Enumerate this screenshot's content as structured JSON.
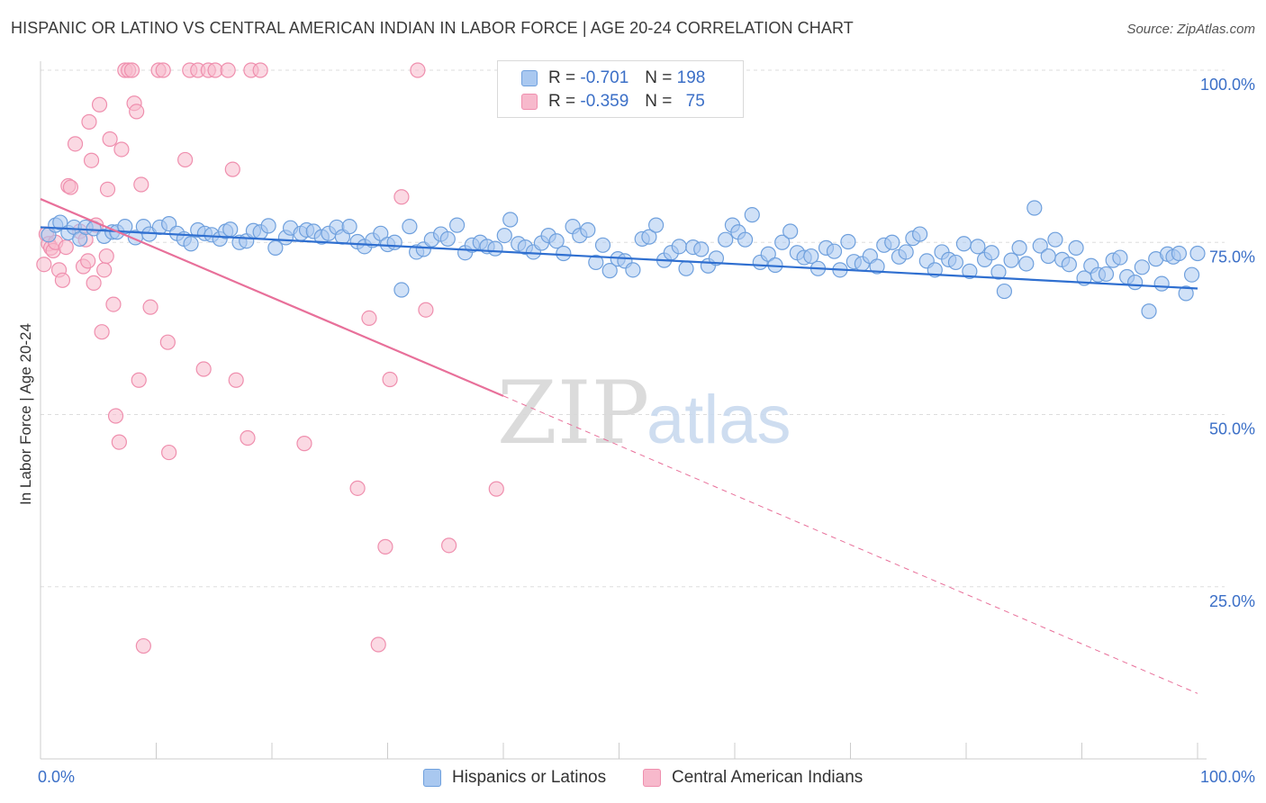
{
  "title": "HISPANIC OR LATINO VS CENTRAL AMERICAN INDIAN IN LABOR FORCE | AGE 20-24 CORRELATION CHART",
  "source": "Source: ZipAtlas.com",
  "watermark": {
    "zip": "ZIP",
    "atlas": "atlas"
  },
  "colors": {
    "blue_fill": "#a9c8f0",
    "blue_stroke": "#6fa0dd",
    "blue_line": "#2f6fd0",
    "pink_fill": "#f7b9cc",
    "pink_stroke": "#ef8fae",
    "pink_line": "#e8709a",
    "tick_label": "#3b6fc7",
    "grid": "#dddddd"
  },
  "legend": {
    "rows": [
      {
        "r_label": "R =",
        "r_value": "-0.701",
        "n_label": "N =",
        "n_value": "198"
      },
      {
        "r_label": "R =",
        "r_value": "-0.359",
        "n_label": "N =",
        "n_value": "75"
      }
    ]
  },
  "bottom_legend": [
    "Hispanics or Latinos",
    "Central American Indians"
  ],
  "chart_data": {
    "type": "scatter",
    "xlabel": "",
    "ylabel": "In Labor Force | Age 20-24",
    "xlim": [
      0,
      100
    ],
    "ylim": [
      0,
      100
    ],
    "x_tick_labels": [
      "0.0%",
      "100.0%"
    ],
    "y_tick_labels": [
      "100.0%",
      "75.0%",
      "50.0%",
      "25.0%"
    ],
    "y_ticks": [
      100,
      75,
      50,
      25
    ],
    "series": [
      {
        "name": "Hispanics or Latinos",
        "color": "blue",
        "trendline": {
          "x": [
            0,
            100
          ],
          "y": [
            77.2,
            68.3
          ],
          "style": "solid"
        },
        "points": [
          [
            0.7,
            76.1
          ],
          [
            1.3,
            77.5
          ],
          [
            1.7,
            77.9
          ],
          [
            2.4,
            76.4
          ],
          [
            2.9,
            77.2
          ],
          [
            3.4,
            75.5
          ],
          [
            3.9,
            77.2
          ],
          [
            4.6,
            77.0
          ],
          [
            5.5,
            75.9
          ],
          [
            6.2,
            76.5
          ],
          [
            6.6,
            76.5
          ],
          [
            7.3,
            77.3
          ],
          [
            8.2,
            75.7
          ],
          [
            8.9,
            77.3
          ],
          [
            9.4,
            76.2
          ],
          [
            10.3,
            77.2
          ],
          [
            11.1,
            77.7
          ],
          [
            11.8,
            76.3
          ],
          [
            12.4,
            75.5
          ],
          [
            13.0,
            74.8
          ],
          [
            13.6,
            76.8
          ],
          [
            14.2,
            76.3
          ],
          [
            14.8,
            76.1
          ],
          [
            15.5,
            75.5
          ],
          [
            16.0,
            76.6
          ],
          [
            16.4,
            76.9
          ],
          [
            17.2,
            75.0
          ],
          [
            17.8,
            75.2
          ],
          [
            18.4,
            76.7
          ],
          [
            19.0,
            76.5
          ],
          [
            19.7,
            77.4
          ],
          [
            20.3,
            74.2
          ],
          [
            21.2,
            75.7
          ],
          [
            21.6,
            77.1
          ],
          [
            22.5,
            76.3
          ],
          [
            23.0,
            76.8
          ],
          [
            23.6,
            76.6
          ],
          [
            24.3,
            75.8
          ],
          [
            24.9,
            76.3
          ],
          [
            25.6,
            77.2
          ],
          [
            26.1,
            75.8
          ],
          [
            26.7,
            77.3
          ],
          [
            27.4,
            75.1
          ],
          [
            28.0,
            74.4
          ],
          [
            28.7,
            75.3
          ],
          [
            29.4,
            76.3
          ],
          [
            30.0,
            74.7
          ],
          [
            30.6,
            75.0
          ],
          [
            31.2,
            68.1
          ],
          [
            31.9,
            77.3
          ],
          [
            32.5,
            73.6
          ],
          [
            33.1,
            74.0
          ],
          [
            33.8,
            75.4
          ],
          [
            34.6,
            76.2
          ],
          [
            35.2,
            75.5
          ],
          [
            36.0,
            77.5
          ],
          [
            36.7,
            73.5
          ],
          [
            37.3,
            74.6
          ],
          [
            38.0,
            75.0
          ],
          [
            38.6,
            74.4
          ],
          [
            39.3,
            74.1
          ],
          [
            40.1,
            76.0
          ],
          [
            40.6,
            78.3
          ],
          [
            41.3,
            74.8
          ],
          [
            41.9,
            74.3
          ],
          [
            42.6,
            73.6
          ],
          [
            43.3,
            74.9
          ],
          [
            43.9,
            76.0
          ],
          [
            44.6,
            75.2
          ],
          [
            45.2,
            73.4
          ],
          [
            46.0,
            77.3
          ],
          [
            46.6,
            76.0
          ],
          [
            47.3,
            76.8
          ],
          [
            48.0,
            72.1
          ],
          [
            48.6,
            74.6
          ],
          [
            49.2,
            70.9
          ],
          [
            49.9,
            72.6
          ],
          [
            50.5,
            72.3
          ],
          [
            51.2,
            71.0
          ],
          [
            52.0,
            75.5
          ],
          [
            52.6,
            75.8
          ],
          [
            53.2,
            77.5
          ],
          [
            53.9,
            72.4
          ],
          [
            54.5,
            73.5
          ],
          [
            55.2,
            74.4
          ],
          [
            55.8,
            71.2
          ],
          [
            56.4,
            74.3
          ],
          [
            57.1,
            74.0
          ],
          [
            57.7,
            71.6
          ],
          [
            58.4,
            72.7
          ],
          [
            59.2,
            75.4
          ],
          [
            59.8,
            77.5
          ],
          [
            60.3,
            76.5
          ],
          [
            60.9,
            75.4
          ],
          [
            61.5,
            79.0
          ],
          [
            62.2,
            72.1
          ],
          [
            62.9,
            73.3
          ],
          [
            63.5,
            71.7
          ],
          [
            64.1,
            75.0
          ],
          [
            64.8,
            76.6
          ],
          [
            65.4,
            73.5
          ],
          [
            66.0,
            72.8
          ],
          [
            66.6,
            73.0
          ],
          [
            67.2,
            71.2
          ],
          [
            67.9,
            74.2
          ],
          [
            68.6,
            73.7
          ],
          [
            69.1,
            71.0
          ],
          [
            69.8,
            75.1
          ],
          [
            70.3,
            72.2
          ],
          [
            71.0,
            71.9
          ],
          [
            71.7,
            73.0
          ],
          [
            72.3,
            71.5
          ],
          [
            72.9,
            74.6
          ],
          [
            73.6,
            75.0
          ],
          [
            74.2,
            72.9
          ],
          [
            74.8,
            73.6
          ],
          [
            75.4,
            75.6
          ],
          [
            76.0,
            76.2
          ],
          [
            76.6,
            72.3
          ],
          [
            77.3,
            71.0
          ],
          [
            77.9,
            73.6
          ],
          [
            78.5,
            72.5
          ],
          [
            79.1,
            72.1
          ],
          [
            79.8,
            74.8
          ],
          [
            80.3,
            70.8
          ],
          [
            81.0,
            74.4
          ],
          [
            81.6,
            72.5
          ],
          [
            82.2,
            73.5
          ],
          [
            82.8,
            70.7
          ],
          [
            83.3,
            67.9
          ],
          [
            83.9,
            72.4
          ],
          [
            84.6,
            74.2
          ],
          [
            85.2,
            71.9
          ],
          [
            85.9,
            80.0
          ],
          [
            86.4,
            74.5
          ],
          [
            87.1,
            73.0
          ],
          [
            87.7,
            75.4
          ],
          [
            88.3,
            72.5
          ],
          [
            88.9,
            71.8
          ],
          [
            89.5,
            74.2
          ],
          [
            90.2,
            69.8
          ],
          [
            90.8,
            71.6
          ],
          [
            91.4,
            70.3
          ],
          [
            92.1,
            70.4
          ],
          [
            92.7,
            72.4
          ],
          [
            93.3,
            72.8
          ],
          [
            93.9,
            70.0
          ],
          [
            94.6,
            69.2
          ],
          [
            95.2,
            71.4
          ],
          [
            95.8,
            65.0
          ],
          [
            96.4,
            72.6
          ],
          [
            96.9,
            69.0
          ],
          [
            97.4,
            73.3
          ],
          [
            97.9,
            72.9
          ],
          [
            98.4,
            73.4
          ],
          [
            99.0,
            67.6
          ],
          [
            99.5,
            70.3
          ],
          [
            100.0,
            73.4
          ]
        ]
      },
      {
        "name": "Central American Indians",
        "color": "pink",
        "trendline": {
          "x": [
            0,
            40
          ],
          "y": [
            81.3,
            52.7
          ],
          "style": "solid",
          "extension": {
            "x": [
              40,
              100
            ],
            "y": [
              52.7,
              9.5
            ],
            "style": "dashed"
          }
        },
        "points": [
          [
            0.3,
            71.8
          ],
          [
            0.5,
            76.2
          ],
          [
            0.7,
            74.8
          ],
          [
            0.9,
            74.2
          ],
          [
            1.1,
            73.8
          ],
          [
            1.3,
            75.0
          ],
          [
            1.6,
            71.0
          ],
          [
            1.9,
            69.5
          ],
          [
            2.2,
            74.3
          ],
          [
            2.4,
            83.2
          ],
          [
            2.6,
            83.0
          ],
          [
            3.0,
            89.3
          ],
          [
            3.4,
            76.6
          ],
          [
            3.7,
            71.5
          ],
          [
            3.9,
            75.4
          ],
          [
            4.1,
            72.3
          ],
          [
            4.2,
            92.5
          ],
          [
            4.4,
            86.9
          ],
          [
            4.6,
            69.1
          ],
          [
            4.8,
            77.5
          ],
          [
            5.1,
            95.0
          ],
          [
            5.3,
            62.0
          ],
          [
            5.5,
            71.0
          ],
          [
            5.7,
            73.0
          ],
          [
            5.8,
            82.7
          ],
          [
            6.0,
            90.0
          ],
          [
            6.3,
            66.0
          ],
          [
            6.5,
            49.8
          ],
          [
            6.8,
            46.0
          ],
          [
            7.0,
            88.5
          ],
          [
            7.3,
            100.0
          ],
          [
            7.6,
            100.0
          ],
          [
            7.9,
            100.0
          ],
          [
            8.1,
            95.2
          ],
          [
            8.3,
            94.0
          ],
          [
            8.5,
            55.0
          ],
          [
            8.7,
            83.4
          ],
          [
            8.9,
            16.4
          ],
          [
            9.5,
            65.6
          ],
          [
            10.2,
            100.0
          ],
          [
            10.6,
            100.0
          ],
          [
            11.0,
            60.5
          ],
          [
            11.1,
            44.5
          ],
          [
            12.5,
            87.0
          ],
          [
            12.9,
            100.0
          ],
          [
            13.6,
            100.0
          ],
          [
            14.1,
            56.6
          ],
          [
            14.5,
            100.0
          ],
          [
            15.1,
            100.0
          ],
          [
            16.2,
            100.0
          ],
          [
            16.6,
            85.6
          ],
          [
            16.9,
            55.0
          ],
          [
            17.9,
            46.6
          ],
          [
            18.2,
            100.0
          ],
          [
            19.0,
            100.0
          ],
          [
            22.8,
            45.8
          ],
          [
            27.4,
            39.3
          ],
          [
            28.4,
            64.0
          ],
          [
            29.2,
            16.6
          ],
          [
            29.8,
            30.8
          ],
          [
            30.2,
            55.1
          ],
          [
            31.2,
            81.6
          ],
          [
            32.6,
            100.0
          ],
          [
            33.3,
            65.2
          ],
          [
            35.3,
            31.0
          ],
          [
            39.4,
            39.2
          ]
        ]
      }
    ]
  }
}
